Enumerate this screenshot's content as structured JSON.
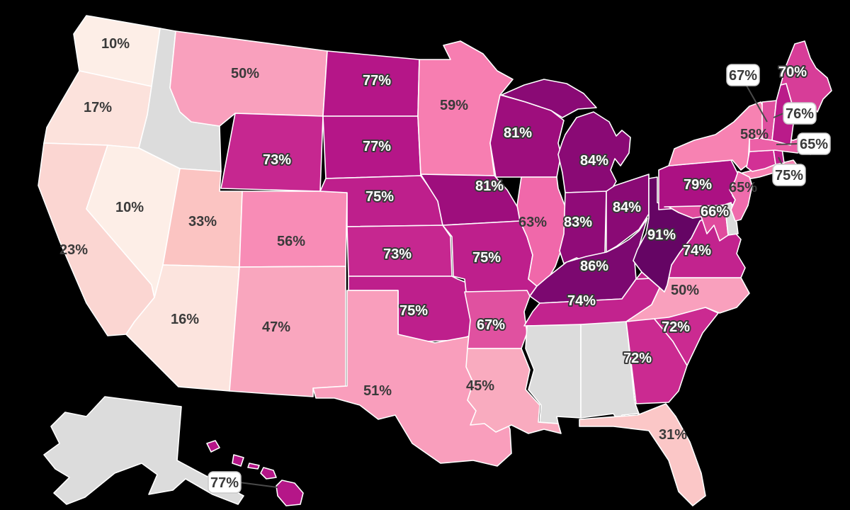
{
  "map": {
    "description": "United States choropleth map with percentage labels per state",
    "background_color": "#000000",
    "state_border_color": "#ffffff",
    "no_data_color": "#dcdcdc",
    "label_dark_color": "#3a3a3a",
    "label_light_color": "#ffffff",
    "callout_style": {
      "background": "#ffffff",
      "border": "#c9c9c9",
      "line": "#4a4a4a"
    },
    "states": [
      {
        "id": "wa",
        "name": "Washington",
        "value": "10%",
        "color": "#fdeee7",
        "label": "dark"
      },
      {
        "id": "or",
        "name": "Oregon",
        "value": "17%",
        "color": "#fce2dc",
        "label": "dark"
      },
      {
        "id": "ca",
        "name": "California",
        "value": "23%",
        "color": "#fbd6d2",
        "label": "dark"
      },
      {
        "id": "nv",
        "name": "Nevada",
        "value": "10%",
        "color": "#fdeee7",
        "label": "dark"
      },
      {
        "id": "id",
        "name": "Idaho",
        "value": null,
        "color": "#dcdcdc",
        "label": "none"
      },
      {
        "id": "mt",
        "name": "Montana",
        "value": "50%",
        "color": "#f9a0bd",
        "label": "dark"
      },
      {
        "id": "wy",
        "name": "Wyoming",
        "value": "73%",
        "color": "#c62790",
        "label": "light"
      },
      {
        "id": "ut",
        "name": "Utah",
        "value": "33%",
        "color": "#fbc4c2",
        "label": "dark"
      },
      {
        "id": "az",
        "name": "Arizona",
        "value": "16%",
        "color": "#fce4de",
        "label": "dark"
      },
      {
        "id": "co",
        "name": "Colorado",
        "value": "56%",
        "color": "#f88cb6",
        "label": "dark"
      },
      {
        "id": "nm",
        "name": "New Mexico",
        "value": "47%",
        "color": "#f9a6be",
        "label": "dark"
      },
      {
        "id": "nd",
        "name": "North Dakota",
        "value": "77%",
        "color": "#b51688",
        "label": "light"
      },
      {
        "id": "sd",
        "name": "South Dakota",
        "value": "77%",
        "color": "#b51688",
        "label": "light"
      },
      {
        "id": "ne",
        "name": "Nebraska",
        "value": "75%",
        "color": "#be1f8c",
        "label": "light"
      },
      {
        "id": "ks",
        "name": "Kansas",
        "value": "73%",
        "color": "#c62790",
        "label": "light"
      },
      {
        "id": "ok",
        "name": "Oklahoma",
        "value": "75%",
        "color": "#be1f8c",
        "label": "light"
      },
      {
        "id": "tx",
        "name": "Texas",
        "value": "51%",
        "color": "#f99ebc",
        "label": "dark"
      },
      {
        "id": "mn",
        "name": "Minnesota",
        "value": "59%",
        "color": "#f77eb1",
        "label": "dark"
      },
      {
        "id": "ia",
        "name": "Iowa",
        "value": "81%",
        "color": "#9e0e7d",
        "label": "light"
      },
      {
        "id": "mo",
        "name": "Missouri",
        "value": "75%",
        "color": "#be1f8c",
        "label": "light"
      },
      {
        "id": "ar",
        "name": "Arkansas",
        "value": "67%",
        "color": "#e051a0",
        "label": "light"
      },
      {
        "id": "la",
        "name": "Louisiana",
        "value": "45%",
        "color": "#f9abbf",
        "label": "dark"
      },
      {
        "id": "wi",
        "name": "Wisconsin",
        "value": "81%",
        "color": "#9e0e7d",
        "label": "light"
      },
      {
        "id": "il",
        "name": "Illinois",
        "value": "63%",
        "color": "#f068aa",
        "label": "dark"
      },
      {
        "id": "mi",
        "name": "Michigan",
        "value": "84%",
        "color": "#8a0a75",
        "label": "light"
      },
      {
        "id": "in",
        "name": "Indiana",
        "value": "83%",
        "color": "#900b78",
        "label": "light"
      },
      {
        "id": "oh",
        "name": "Ohio",
        "value": "84%",
        "color": "#8a0a75",
        "label": "light"
      },
      {
        "id": "ky",
        "name": "Kentucky",
        "value": "86%",
        "color": "#7c0870",
        "label": "light"
      },
      {
        "id": "tn",
        "name": "Tennessee",
        "value": "74%",
        "color": "#c2238e",
        "label": "light"
      },
      {
        "id": "ms",
        "name": "Mississippi",
        "value": null,
        "color": "#dcdcdc",
        "label": "none"
      },
      {
        "id": "al",
        "name": "Alabama",
        "value": null,
        "color": "#dcdcdc",
        "label": "none"
      },
      {
        "id": "ga",
        "name": "Georgia",
        "value": "72%",
        "color": "#cb2a91",
        "label": "light"
      },
      {
        "id": "sc",
        "name": "South Carolina",
        "value": "72%",
        "color": "#cb2a91",
        "label": "light"
      },
      {
        "id": "nc",
        "name": "North Carolina",
        "value": "50%",
        "color": "#f9a0bd",
        "label": "dark"
      },
      {
        "id": "fl",
        "name": "Florida",
        "value": "31%",
        "color": "#fbc7c7",
        "label": "dark"
      },
      {
        "id": "va",
        "name": "Virginia",
        "value": "74%",
        "color": "#c2238e",
        "label": "light"
      },
      {
        "id": "wv",
        "name": "West Virginia",
        "value": "91%",
        "color": "#650564",
        "label": "light"
      },
      {
        "id": "pa",
        "name": "Pennsylvania",
        "value": "79%",
        "color": "#ac1183",
        "label": "light"
      },
      {
        "id": "ny",
        "name": "New York",
        "value": "58%",
        "color": "#f782b2",
        "label": "dark"
      },
      {
        "id": "md",
        "name": "Maryland",
        "value": "66%",
        "color": "#e04b9d",
        "label": "light"
      },
      {
        "id": "de",
        "name": "Delaware",
        "value": null,
        "color": "#dcdcdc",
        "label": "none"
      },
      {
        "id": "nj",
        "name": "New Jersey",
        "value": "65%",
        "color": "#ef6cad",
        "label": "dark"
      },
      {
        "id": "ct",
        "name": "Connecticut",
        "value": null,
        "color": "#d23095",
        "label": "none"
      },
      {
        "id": "ri",
        "name": "Rhode Island",
        "value": "75%",
        "color": "#be1f8c",
        "label": "callout"
      },
      {
        "id": "ma",
        "name": "Massachusetts",
        "value": "65%",
        "color": "#ec60a7",
        "label": "callout"
      },
      {
        "id": "vt",
        "name": "Vermont",
        "value": "67%",
        "color": "#e051a0",
        "label": "callout"
      },
      {
        "id": "nh",
        "name": "New Hampshire",
        "value": "76%",
        "color": "#ba1b8a",
        "label": "callout"
      },
      {
        "id": "me",
        "name": "Maine",
        "value": "70%",
        "color": "#d73d98",
        "label": "light"
      },
      {
        "id": "ak",
        "name": "Alaska",
        "value": null,
        "color": "#dcdcdc",
        "label": "none"
      },
      {
        "id": "hi",
        "name": "Hawaii",
        "value": "77%",
        "color": "#b51688",
        "label": "callout"
      }
    ]
  }
}
